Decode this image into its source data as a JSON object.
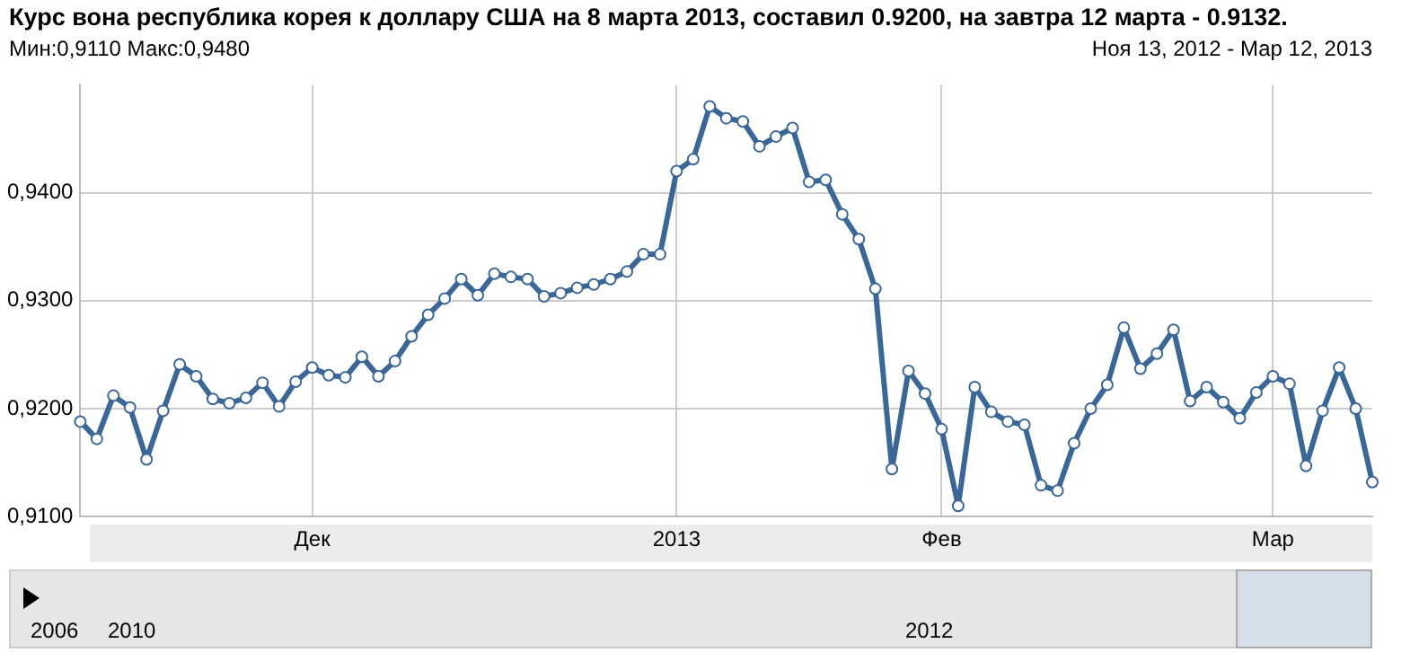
{
  "chart_data": {
    "type": "line",
    "title": "Курс вона республика корея к доллару США на 8 марта 2013, составил 0.9200, на завтра 12 марта - 0.9132.",
    "subtitle": "Мин:0,9110 Макс:0,9480",
    "annotations": [
      "Ноя 13, 2012 - Мар 12, 2013",
      "2006",
      "2010",
      "2012"
    ],
    "categories": [
      null,
      null,
      null,
      null,
      null,
      null,
      null,
      null,
      null,
      null,
      null,
      null,
      null,
      null,
      "Дек",
      null,
      null,
      null,
      null,
      null,
      null,
      null,
      null,
      null,
      null,
      null,
      null,
      null,
      null,
      null,
      null,
      null,
      null,
      null,
      null,
      null,
      "2013",
      null,
      null,
      null,
      null,
      null,
      null,
      null,
      null,
      null,
      null,
      null,
      null,
      null,
      null,
      null,
      "Фев",
      null,
      null,
      null,
      null,
      null,
      null,
      null,
      null,
      null,
      null,
      null,
      null,
      null,
      null,
      null,
      null,
      null,
      null,
      null,
      "Мар",
      null,
      null,
      null,
      null,
      null,
      null
    ],
    "series": [
      {
        "color": "#3a6796",
        "values": [
          0.9188,
          0.9172,
          0.9212,
          0.9201,
          0.9153,
          0.9198,
          0.9241,
          0.923,
          0.9209,
          0.9205,
          0.921,
          0.9224,
          0.9202,
          0.9225,
          0.9238,
          0.9231,
          0.9229,
          0.9248,
          0.923,
          0.9244,
          0.9267,
          0.9287,
          0.9302,
          0.932,
          0.9305,
          0.9325,
          0.9322,
          0.932,
          0.9304,
          0.9307,
          0.9312,
          0.9315,
          0.932,
          0.9327,
          0.9343,
          0.9343,
          0.942,
          0.9431,
          0.948,
          0.9469,
          0.9466,
          0.9443,
          0.9452,
          0.946,
          0.941,
          0.9412,
          0.938,
          0.9357,
          0.9311,
          0.9144,
          0.9235,
          0.9214,
          0.9181,
          0.911,
          0.922,
          0.9197,
          0.9188,
          0.9185,
          0.9129,
          0.9124,
          0.9168,
          0.92,
          0.9222,
          0.9275,
          0.9237,
          0.9251,
          0.9273,
          0.9207,
          0.922,
          0.9206,
          0.9191,
          0.9215,
          0.923,
          0.9223,
          0.9147,
          0.9198,
          0.9238,
          0.92,
          0.9132
        ]
      }
    ],
    "ylim": [
      0.91,
      0.95
    ],
    "yticks": [
      {
        "value": 0.91,
        "label": "0,9100"
      },
      {
        "value": 0.92,
        "label": "0,9200"
      },
      {
        "value": 0.93,
        "label": "0,9300"
      },
      {
        "value": 0.94,
        "label": "0,9400"
      }
    ],
    "grid": true,
    "marker": "circle",
    "line_style": "solid",
    "legend": false
  }
}
